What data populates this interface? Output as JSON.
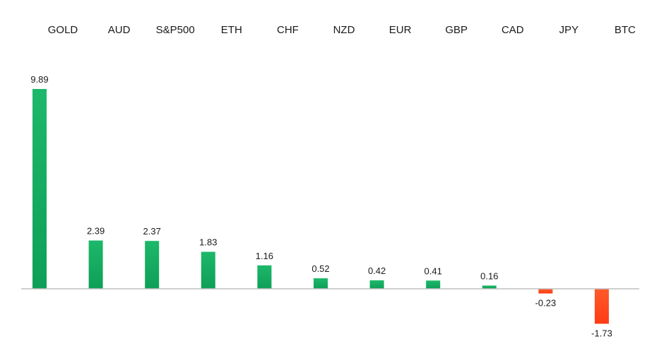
{
  "chart_data": {
    "type": "bar",
    "title": "",
    "xlabel": "",
    "ylabel": "",
    "categories": [
      "GOLD",
      "AUD",
      "S&P500",
      "ETH",
      "CHF",
      "NZD",
      "EUR",
      "GBP",
      "CAD",
      "JPY",
      "BTC"
    ],
    "values": [
      9.89,
      2.39,
      2.37,
      1.83,
      1.16,
      0.52,
      0.42,
      0.41,
      0.16,
      -0.23,
      -1.73
    ],
    "value_labels": [
      "9.89",
      "2.39",
      "2.37",
      "1.83",
      "1.16",
      "0.52",
      "0.42",
      "0.41",
      "0.16",
      "-0.23",
      "-1.73"
    ],
    "ylim": [
      -1.73,
      9.89
    ],
    "grid": false,
    "legend": "none",
    "category_label_position": "top",
    "colors": {
      "positive_top": "#1DB86A",
      "positive_bottom": "#0E9F57",
      "negative_top": "#FF5A2A",
      "negative_bottom": "#FF3B14",
      "axis": "#BFBFBF"
    }
  }
}
